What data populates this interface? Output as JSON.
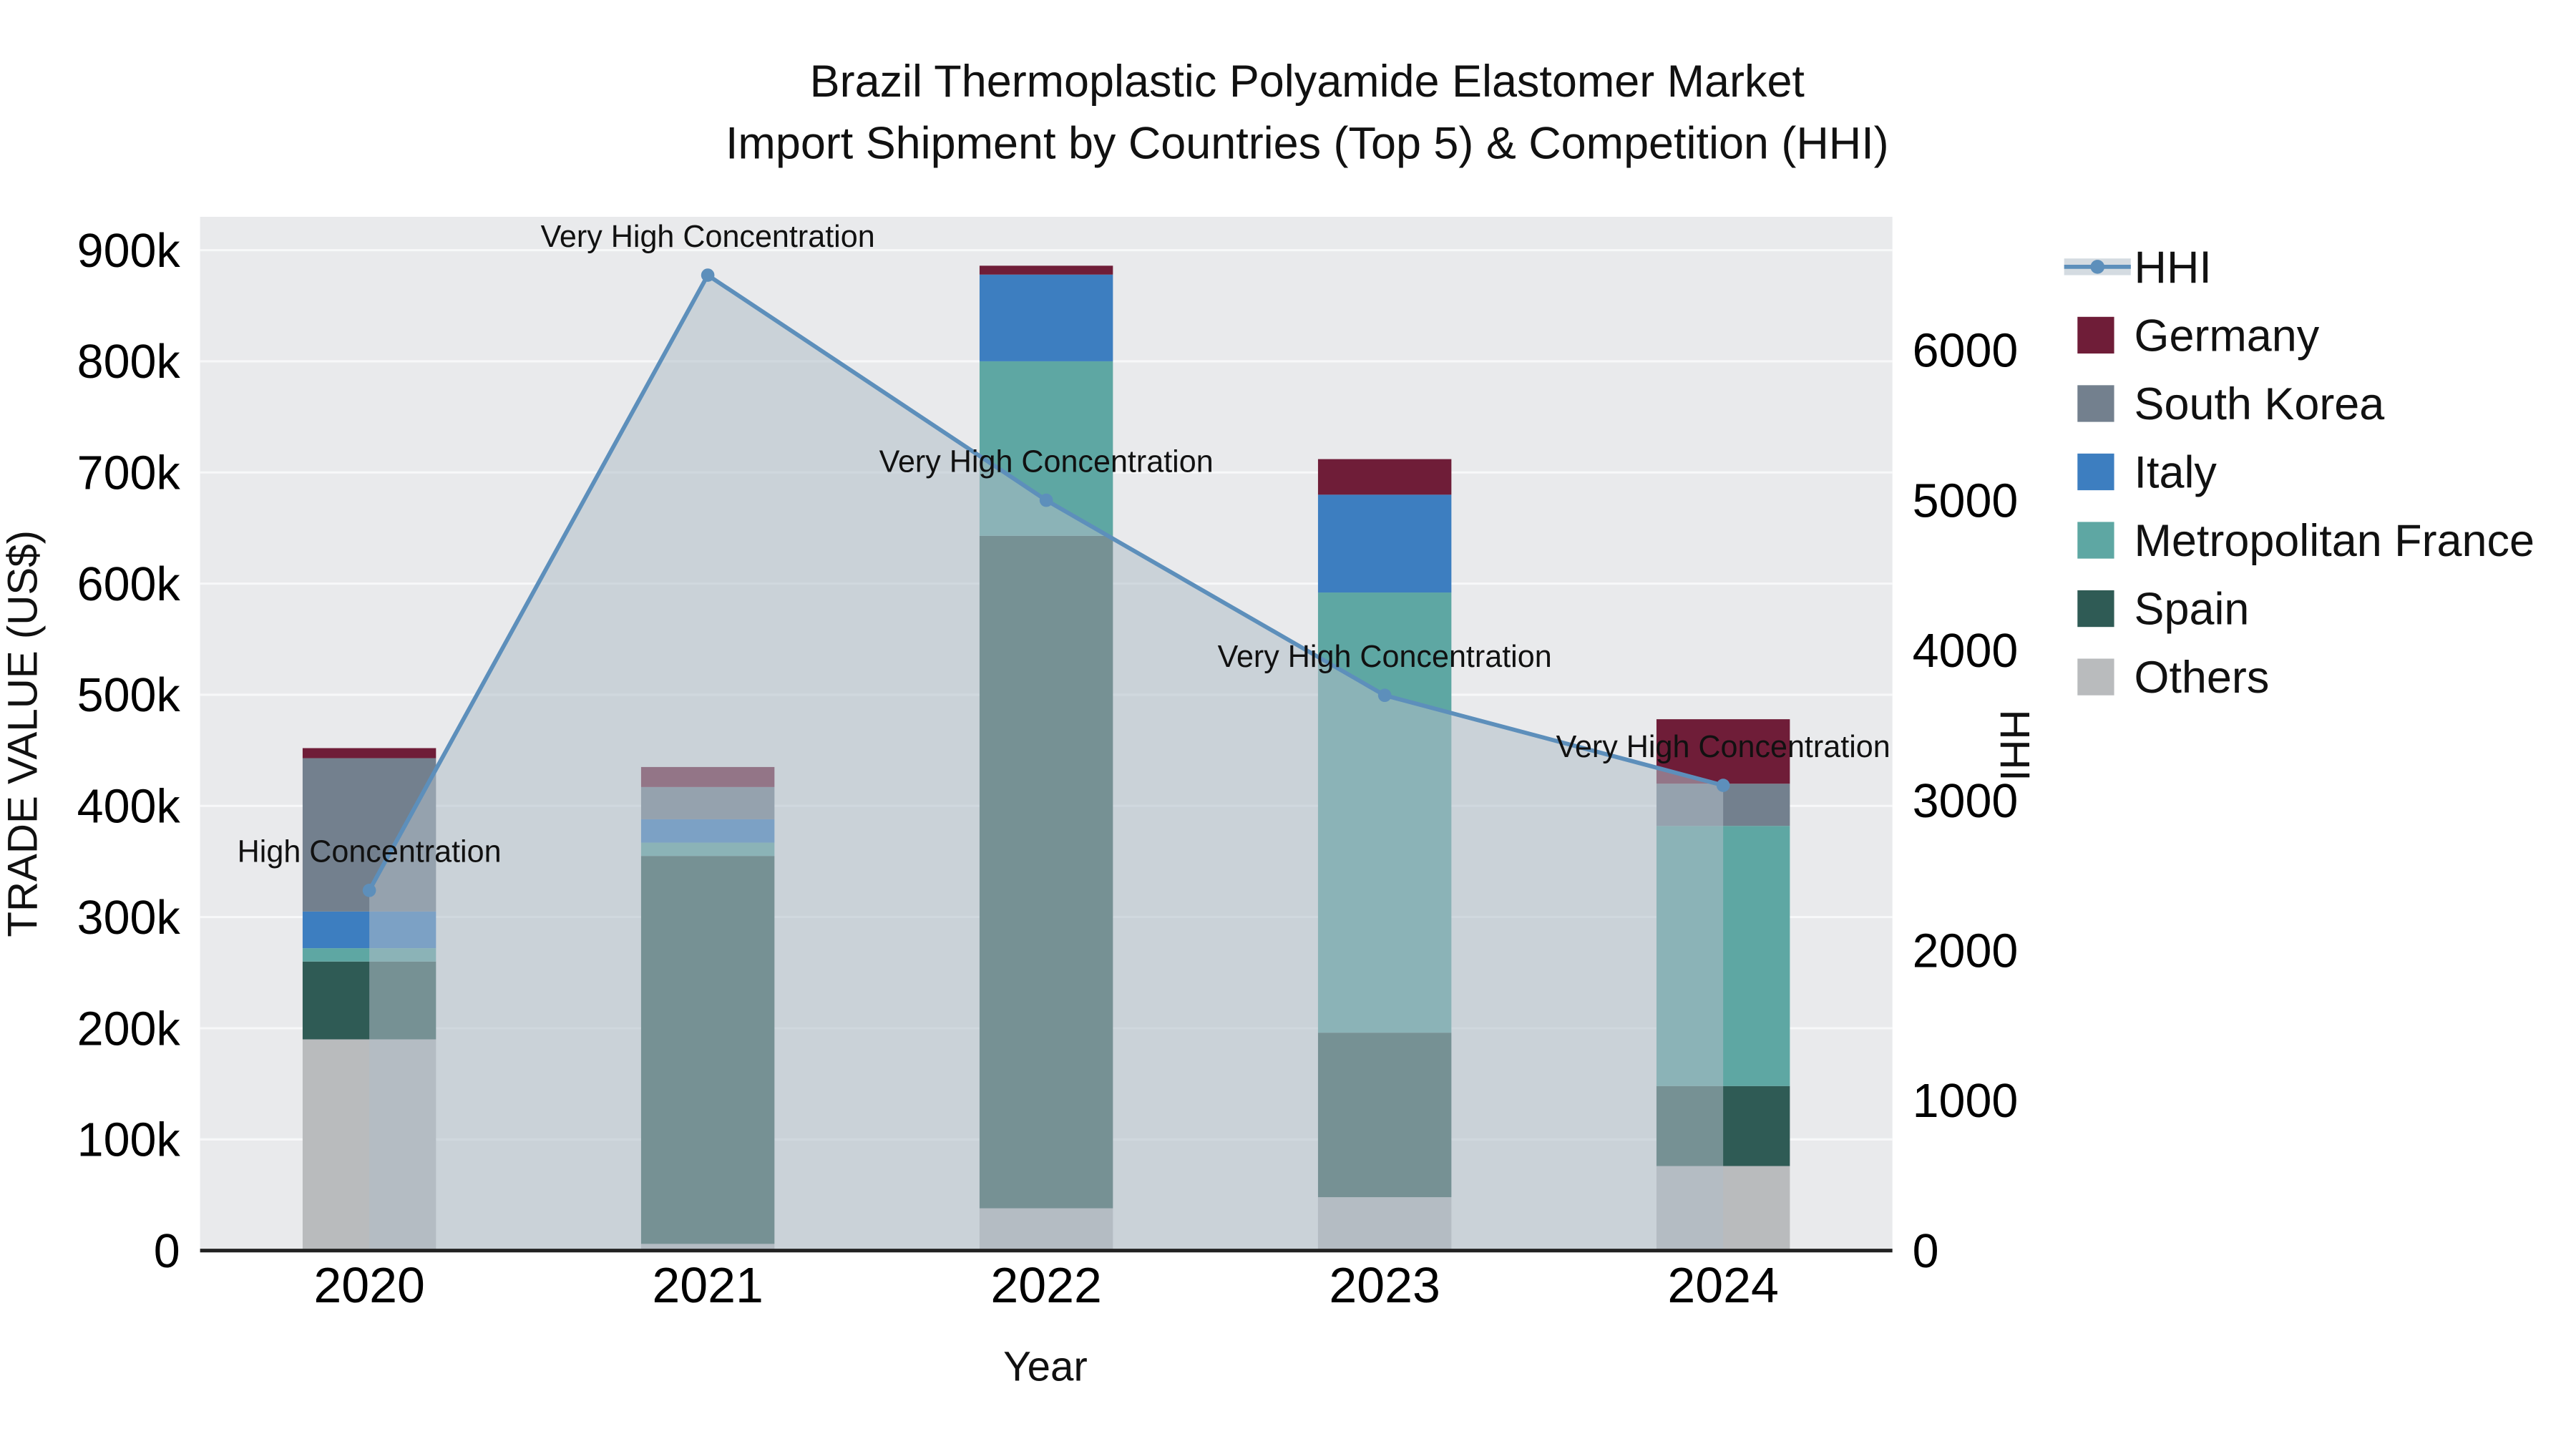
{
  "title": {
    "line1": "Brazil Thermoplastic Polyamide Elastomer Market",
    "line2": "Import Shipment by Countries (Top 5) & Competition (HHI)"
  },
  "chart_data": {
    "type": "bar",
    "subtype": "stacked-bars-with-line-overlay",
    "title": "Brazil Thermoplastic Polyamide Elastomer Market Import Shipment by Countries (Top 5) & Competition (HHI)",
    "xlabel": "Year",
    "ylabel_left": "TRADE VALUE (US$)",
    "ylabel_right": "HHI",
    "categories": [
      "2020",
      "2021",
      "2022",
      "2023",
      "2024"
    ],
    "stack_order": [
      "Others",
      "Spain",
      "Metropolitan France",
      "Italy",
      "South Korea",
      "Germany"
    ],
    "series": [
      {
        "name": "Germany",
        "color": "#6f1d38",
        "values": [
          9000,
          18000,
          8000,
          32000,
          58000
        ]
      },
      {
        "name": "South Korea",
        "color": "#73808e",
        "values": [
          138000,
          29000,
          0,
          0,
          38000
        ]
      },
      {
        "name": "Italy",
        "color": "#3d7ec0",
        "values": [
          33000,
          21000,
          78000,
          88000,
          0
        ]
      },
      {
        "name": "Metropolitan France",
        "color": "#5ea7a3",
        "values": [
          12000,
          12000,
          157000,
          396000,
          234000
        ]
      },
      {
        "name": "Spain",
        "color": "#2f5b55",
        "values": [
          70000,
          349000,
          605000,
          148000,
          72000
        ]
      },
      {
        "name": "Others",
        "color": "#b9bbbd",
        "values": [
          190000,
          6000,
          38000,
          48000,
          76000
        ]
      }
    ],
    "hhi": {
      "name": "HHI",
      "color": "#5d8fbb",
      "fill": "rgba(176,189,200,0.55)",
      "values": [
        2400,
        6500,
        5000,
        3700,
        3100
      ]
    },
    "annotations": [
      "High Concentration",
      "Very High Concentration",
      "Very High Concentration",
      "Very High Concentration",
      "Very High Concentration"
    ],
    "left_axis": {
      "min": 0,
      "max": 900000,
      "tick_step": 100000,
      "tick_labels": [
        "0",
        "100k",
        "200k",
        "300k",
        "400k",
        "500k",
        "600k",
        "700k",
        "800k",
        "900k"
      ]
    },
    "right_axis": {
      "min": 0,
      "ticks": [
        0,
        1000,
        2000,
        3000,
        4000,
        5000,
        6000
      ],
      "tick_labels": [
        "0",
        "1000",
        "2000",
        "3000",
        "4000",
        "5000",
        "6000"
      ]
    },
    "legend": [
      "HHI",
      "Germany",
      "South Korea",
      "Italy",
      "Metropolitan France",
      "Spain",
      "Others"
    ],
    "grid": true,
    "legend_position": "right",
    "plot_background": "#e9eaec",
    "grid_color": "#f7f8f9"
  }
}
